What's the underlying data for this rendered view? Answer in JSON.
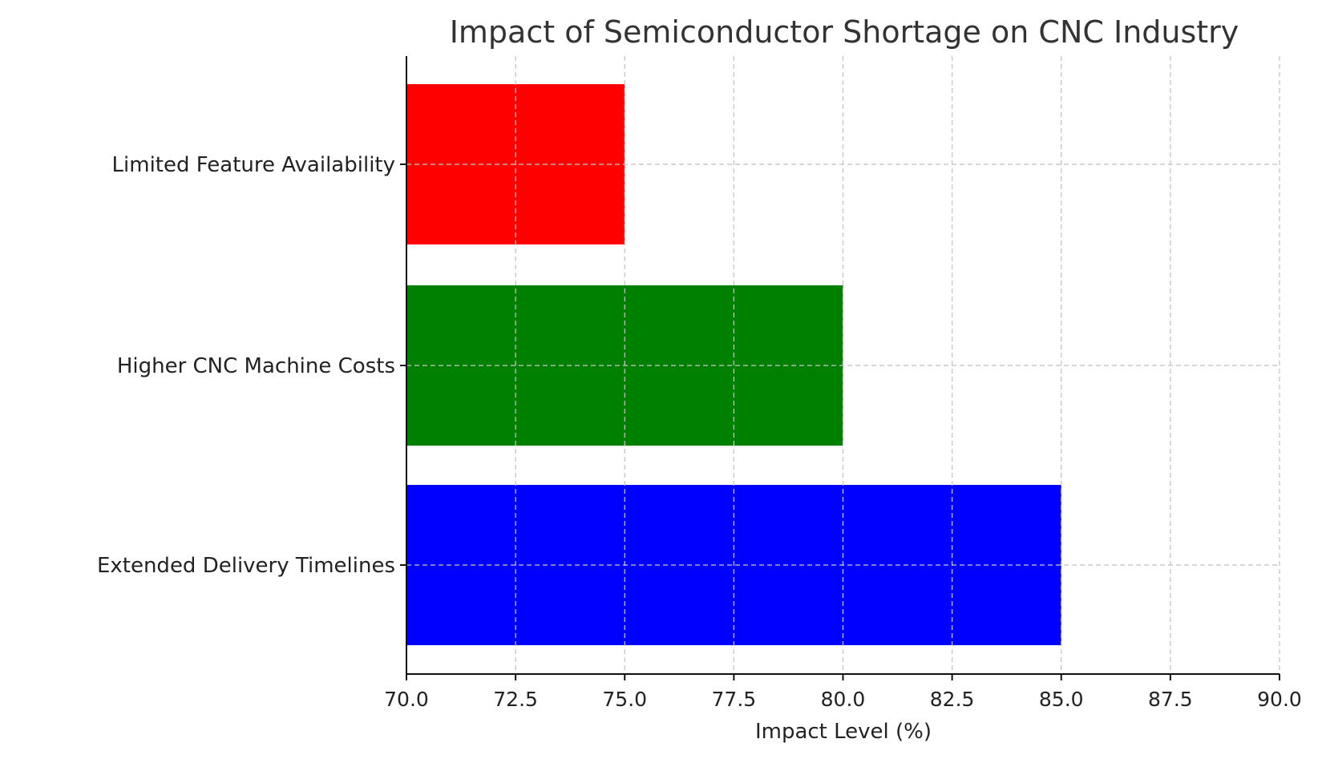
{
  "chart_data": {
    "type": "bar",
    "orientation": "horizontal",
    "title": "Impact of Semiconductor Shortage on CNC Industry",
    "xlabel": "Impact Level (%)",
    "ylabel": "",
    "xlim": [
      70,
      90
    ],
    "x_ticks": [
      "70.0",
      "72.5",
      "75.0",
      "77.5",
      "80.0",
      "82.5",
      "85.0",
      "87.5",
      "90.0"
    ],
    "categories": [
      "Extended Delivery Timelines",
      "Higher CNC Machine Costs",
      "Limited Feature Availability"
    ],
    "values": [
      85,
      80,
      75
    ],
    "colors": [
      "#0000ff",
      "#008000",
      "#ff0000"
    ],
    "grid": true
  }
}
